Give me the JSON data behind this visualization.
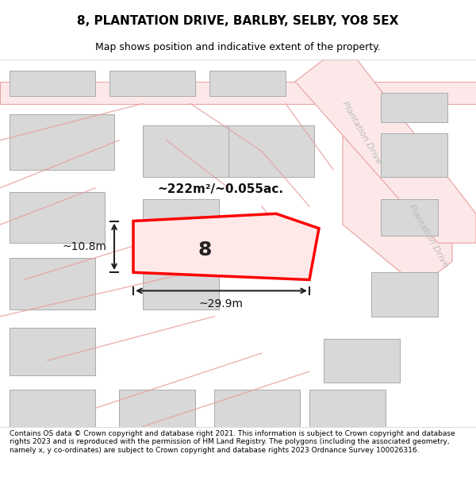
{
  "title": "8, PLANTATION DRIVE, BARLBY, SELBY, YO8 5EX",
  "subtitle": "Map shows position and indicative extent of the property.",
  "footer": "Contains OS data © Crown copyright and database right 2021. This information is subject to Crown copyright and database rights 2023 and is reproduced with the permission of HM Land Registry. The polygons (including the associated geometry, namely x, y co-ordinates) are subject to Crown copyright and database rights 2023 Ordnance Survey 100026316.",
  "bg_color": "#ffffff",
  "map_bg": "#f7f7f7",
  "road_color": "#e8a0a0",
  "road_fill": "#f5d0d0",
  "building_color": "#cccccc",
  "building_fill": "#d8d8d8",
  "highlight_color": "#ff0000",
  "highlight_fill": "#ffe0e0",
  "dim_color": "#222222",
  "area_text": "~222m²/~0.055ac.",
  "width_text": "~29.9m",
  "height_text": "~10.8m",
  "plot_number": "8",
  "plantation_drive_top": "Plantation Drive",
  "plantation_drive_bottom": "Plantation Drive"
}
